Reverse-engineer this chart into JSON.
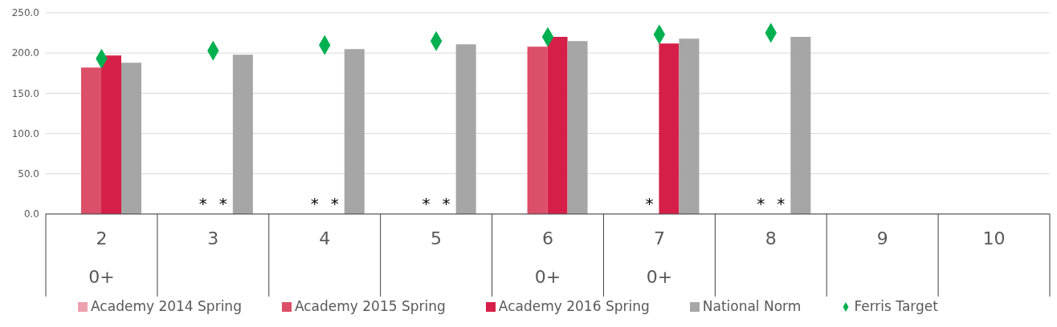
{
  "chart_data": {
    "type": "bar",
    "categories": [
      "2\n0+",
      "3",
      "4",
      "5",
      "6\n0+",
      "7\n0+",
      "8",
      "9",
      "10"
    ],
    "series": [
      {
        "name": "Academy 2014 Spring",
        "color": "#eda0ae",
        "values": [
          null,
          null,
          null,
          null,
          null,
          null,
          null,
          null,
          null
        ]
      },
      {
        "name": "Academy 2015 Spring",
        "color": "#dc4f69",
        "values": [
          182,
          null,
          null,
          null,
          208,
          null,
          null,
          null,
          null
        ],
        "value_labels": [
          null,
          "*",
          "*",
          "*",
          null,
          "*",
          "*",
          null,
          null
        ]
      },
      {
        "name": "Academy 2016 Spring",
        "color": "#d61f48",
        "values": [
          197,
          null,
          null,
          null,
          220,
          212,
          null,
          null,
          null
        ],
        "value_labels": [
          null,
          "*",
          "*",
          "*",
          null,
          null,
          "*",
          null,
          null
        ]
      },
      {
        "name": "National Norm",
        "color": "#a6a6a6",
        "values": [
          188,
          198,
          205,
          211,
          215,
          218,
          220,
          null,
          null
        ]
      },
      {
        "name": "Ferris Target",
        "type": "scatter",
        "color": "#00b050",
        "values": [
          193,
          203,
          210,
          215,
          220,
          223,
          225,
          null,
          null
        ]
      }
    ],
    "ylim": [
      0,
      250
    ],
    "yticks": [
      {
        "value": 0,
        "label": "0.0"
      },
      {
        "value": 50,
        "label": "50.0"
      },
      {
        "value": 100,
        "label": "100.0"
      },
      {
        "value": 150,
        "label": "150.0"
      },
      {
        "value": 200,
        "label": "200.0"
      },
      {
        "value": 250,
        "label": "250.0"
      }
    ],
    "grid": "y",
    "legend": "bottom",
    "marker": "diamond"
  }
}
